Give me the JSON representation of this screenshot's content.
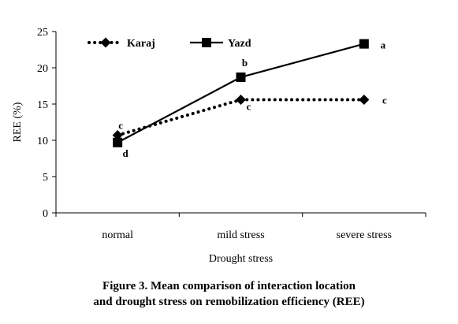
{
  "chart_data": {
    "type": "line",
    "categories": [
      "normal",
      "mild stress",
      "severe stress"
    ],
    "series": [
      {
        "name": "Karaj",
        "values": [
          10.7,
          15.6,
          15.6
        ],
        "labels": [
          "c",
          "c",
          "c"
        ],
        "line_style": "dotted",
        "marker": "diamond",
        "color": "#000000"
      },
      {
        "name": "Yazd",
        "values": [
          9.7,
          18.7,
          23.3
        ],
        "labels": [
          "d",
          "b",
          "a"
        ],
        "line_style": "solid",
        "marker": "square",
        "color": "#000000"
      }
    ],
    "xlabel": "Drought stress",
    "ylabel": "REE (%)",
    "ylim": [
      0,
      25
    ],
    "yticks": [
      0,
      5,
      10,
      15,
      20,
      25
    ],
    "grid": false,
    "legend_position": "top-left"
  },
  "caption": {
    "line1": "Figure 3. Mean comparison of interaction location",
    "line2": "and drought stress on remobilization efficiency (REE)"
  }
}
